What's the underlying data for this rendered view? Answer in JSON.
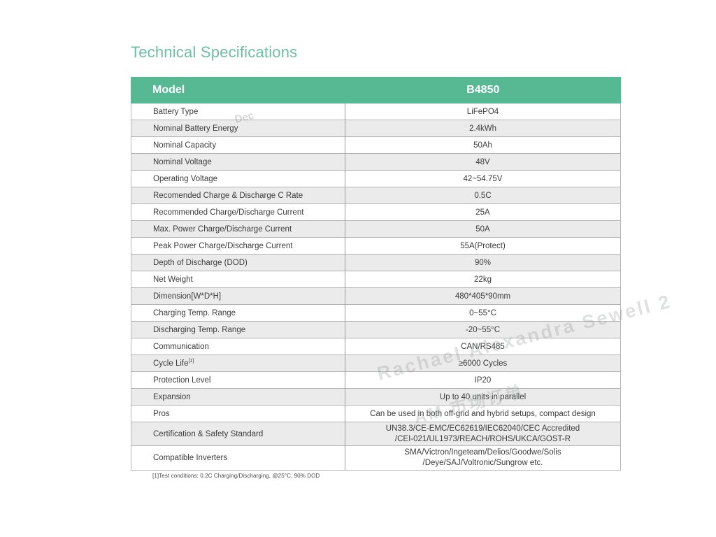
{
  "page": {
    "title": "Technical Specifications"
  },
  "colors": {
    "header_green": "#57b894",
    "title_green": "#6cc0a1",
    "row_alt": "#ebebeb"
  },
  "table": {
    "header": {
      "left": "Model",
      "right": "B4850"
    },
    "rows": [
      {
        "label": "Battery Type",
        "value": "LiFePO4"
      },
      {
        "label": "Nominal Battery Energy",
        "value": "2.4kWh"
      },
      {
        "label": "Nominal Capacity",
        "value": "50Ah"
      },
      {
        "label": "Nominal Voltage",
        "value": "48V"
      },
      {
        "label": "Operating Voltage",
        "value": "42~54.75V"
      },
      {
        "label": "Recomended Charge & Discharge C Rate",
        "value": "0.5C"
      },
      {
        "label": "Recommended Charge/Discharge Current",
        "value": "25A"
      },
      {
        "label": "Max. Power Charge/Discharge Current",
        "value": "50A"
      },
      {
        "label": "Peak Power Charge/Discharge Current",
        "value": "55A(Protect)"
      },
      {
        "label": "Depth of Discharge (DOD)",
        "value": "90%"
      },
      {
        "label": "Net Weight",
        "value": "22kg"
      },
      {
        "label": "Dimension[W*D*H]",
        "value": "480*405*90mm"
      },
      {
        "label": "Charging Temp. Range",
        "value": "0~55°C"
      },
      {
        "label": "Discharging Temp. Range",
        "value": "-20~55°C"
      },
      {
        "label": "Communication",
        "value": "CAN/RS485"
      },
      {
        "label": "Cycle Life",
        "label_sup": "[1]",
        "value": "≥6000 Cycles"
      },
      {
        "label": "Protection Level",
        "value": "IP20"
      },
      {
        "label": "Expansion",
        "value": "Up to 40 units in parallel"
      },
      {
        "label": "Pros",
        "value": "Can be used in both off-grid and hybrid setups, compact design"
      },
      {
        "label": "Certification & Safety Standard",
        "value": "UN38.3/CE-EMC/EC62619/IEC62040/CEC Accredited",
        "value2": "/CEI-021/UL1973/REACH/ROHS/UKCA/GOST-R"
      },
      {
        "label": "Compatible Inverters",
        "value": "SMA/Victron/Ingeteam/Delios/Goodwe/Solis",
        "value2": "/Deye/SAJ/Voltronic/Sungrow etc."
      }
    ],
    "footnote": "[1]Test conditions: 0.2C Charging/Discharging, @25°C, 90% DOD"
  },
  "watermarks": {
    "fragment": "Dec",
    "name_line": "Rachael Alexandra Sewell 2",
    "time_line": "AM 市场订单"
  }
}
